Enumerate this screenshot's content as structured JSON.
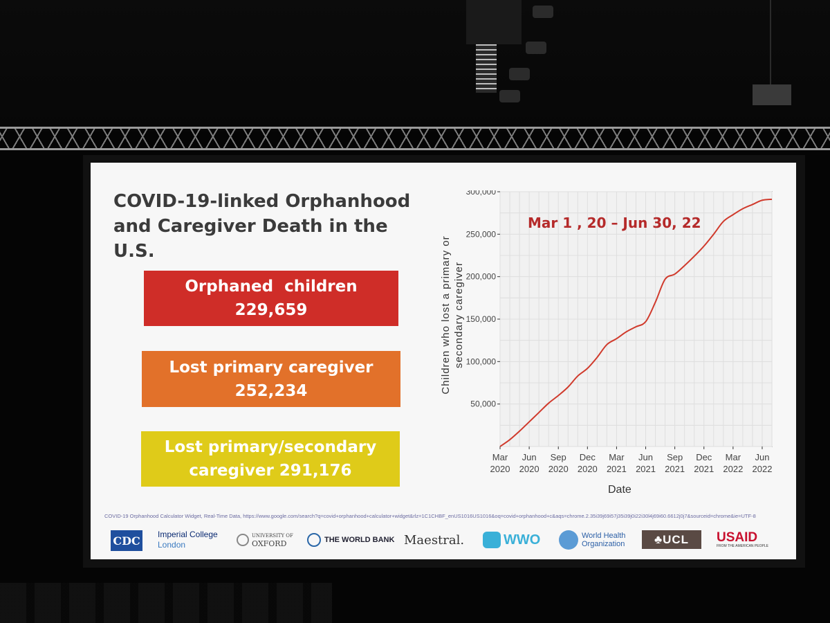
{
  "slide": {
    "title_line1": "COVID-19-linked Orphanhood",
    "title_line2": "and Caregiver Death in the U.S.",
    "stats": [
      {
        "label": "Orphaned  children",
        "value": "229,659",
        "color": "#cf2d28"
      },
      {
        "label": "Lost primary caregiver",
        "value": "252,234",
        "color": "#e2712a"
      },
      {
        "label": "Lost primary/secondary",
        "value": "caregiver 291,176",
        "color": "#dfcb19"
      }
    ],
    "source_note": "COVID-19 Orphanhood Calculator Widget, Real-Time Data, https://www.google.com/search?q=covid+orphanhood+calculator+widget&rlz=1C1CHBF_enUS1016US1016&oq=covid+orphanhood+c&aqs=chrome.2.35i39j69i57j35i39j0i22i30l4j69i60.6612j0j7&sourceid=chrome&ie=UTF-8",
    "logos": [
      {
        "name": "CDC",
        "text": "CDC"
      },
      {
        "name": "Imperial College London",
        "text": "Imperial College",
        "text2": "London"
      },
      {
        "name": "University of Oxford",
        "text": "UNIVERSITY OF",
        "text2": "OXFORD"
      },
      {
        "name": "The World Bank",
        "text": "THE WORLD BANK"
      },
      {
        "name": "Maestral",
        "text": "Maestral."
      },
      {
        "name": "WWO",
        "text": "WWO"
      },
      {
        "name": "World Health Organization",
        "text": "World Health",
        "text2": "Organization"
      },
      {
        "name": "UCL",
        "text": "♣UCL"
      },
      {
        "name": "USAID",
        "text": "USAID",
        "text2": "FROM THE AMERICAN PEOPLE"
      }
    ]
  },
  "chart_data": {
    "type": "line",
    "title": "Mar 1 , 20 – Jun 30, 22",
    "xlabel": "Date",
    "ylabel_line1": "Children who lost a primary or",
    "ylabel_line2": "secondary caregiver",
    "ylim": [
      0,
      300000
    ],
    "yticks": [
      50000,
      100000,
      150000,
      200000,
      250000,
      300000
    ],
    "ytick_labels": [
      "50,000",
      "100,000",
      "150,000",
      "200,000",
      "250,000",
      "300,000"
    ],
    "xlim": [
      "2020-03",
      "2022-07"
    ],
    "xticks": [
      "2020-03",
      "2020-06",
      "2020-09",
      "2020-12",
      "2021-03",
      "2021-06",
      "2021-09",
      "2021-12",
      "2022-03",
      "2022-06"
    ],
    "xtick_labels": [
      [
        "Mar",
        "2020"
      ],
      [
        "Jun",
        "2020"
      ],
      [
        "Sep",
        "2020"
      ],
      [
        "Dec",
        "2020"
      ],
      [
        "Mar",
        "2021"
      ],
      [
        "Jun",
        "2021"
      ],
      [
        "Sep",
        "2021"
      ],
      [
        "Dec",
        "2021"
      ],
      [
        "Mar",
        "2022"
      ],
      [
        "Jun",
        "2022"
      ]
    ],
    "grid": true,
    "line_color": "#d03a2c",
    "series": [
      {
        "x": [
          "2020-03",
          "2020-04",
          "2020-05",
          "2020-06",
          "2020-07",
          "2020-08",
          "2020-09",
          "2020-10",
          "2020-11",
          "2020-12",
          "2021-01",
          "2021-02",
          "2021-03",
          "2021-04",
          "2021-05",
          "2021-06",
          "2021-07",
          "2021-08",
          "2021-09",
          "2021-10",
          "2021-11",
          "2021-12",
          "2022-01",
          "2022-02",
          "2022-03",
          "2022-04",
          "2022-05",
          "2022-06",
          "2022-07"
        ],
        "values": [
          0,
          8000,
          18000,
          29000,
          40000,
          51000,
          60000,
          70000,
          83000,
          92000,
          105000,
          120000,
          127000,
          135000,
          141000,
          147000,
          170000,
          197000,
          203000,
          213000,
          224000,
          236000,
          250000,
          265000,
          273000,
          280000,
          285000,
          290000,
          291176
        ]
      }
    ]
  }
}
